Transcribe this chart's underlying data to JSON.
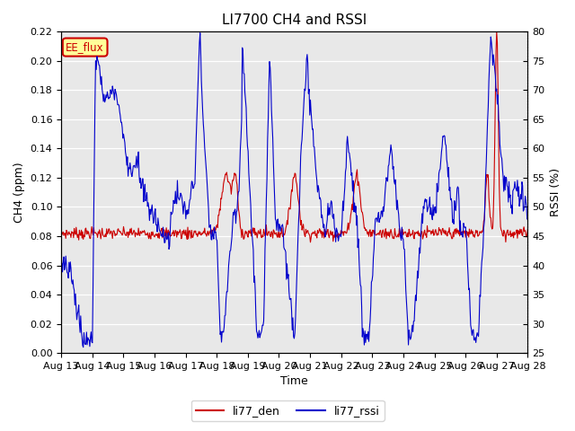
{
  "title": "LI7700 CH4 and RSSI",
  "xlabel": "Time",
  "ylabel_left": "CH4 (ppm)",
  "ylabel_right": "RSSI (%)",
  "ylim_left": [
    0.0,
    0.22
  ],
  "ylim_right": [
    25,
    80
  ],
  "yticks_left": [
    0.0,
    0.02,
    0.04,
    0.06,
    0.08,
    0.1,
    0.12,
    0.14,
    0.16,
    0.18,
    0.2,
    0.22
  ],
  "yticks_right": [
    25,
    30,
    35,
    40,
    45,
    50,
    55,
    60,
    65,
    70,
    75,
    80
  ],
  "xtick_labels": [
    "Aug 13",
    "Aug 14",
    "Aug 15",
    "Aug 16",
    "Aug 17",
    "Aug 18",
    "Aug 19",
    "Aug 20",
    "Aug 21",
    "Aug 22",
    "Aug 23",
    "Aug 24",
    "Aug 25",
    "Aug 26",
    "Aug 27",
    "Aug 28"
  ],
  "legend_labels": [
    "li77_den",
    "li77_rssi"
  ],
  "legend_colors": [
    "#cc0000",
    "#0000cc"
  ],
  "line_color_ch4": "#cc0000",
  "line_color_rssi": "#0000cc",
  "annotation_text": "EE_flux",
  "annotation_color": "#cc0000",
  "annotation_bg": "#ffff99",
  "plot_bg": "#e8e8e8",
  "title_fontsize": 11,
  "axis_fontsize": 9,
  "tick_fontsize": 8
}
